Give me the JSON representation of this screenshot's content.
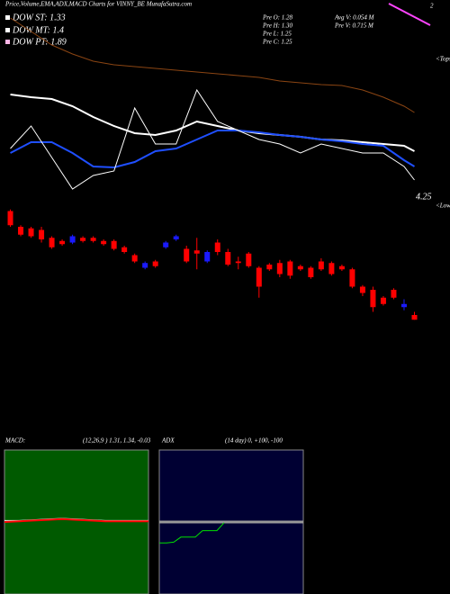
{
  "header": {
    "title": "Price,Volume,EMA,ADX,MACD Charts for VINNY_BE MunafaSutra.com",
    "legend": [
      "DOW ST: 1.33",
      "DOW MT: 1.4",
      "DOW PT: 1.89"
    ],
    "prev": [
      "Pre  O: 1.28",
      "Pre  H: 1.30",
      "Pre  L: 1.25",
      "Pre  C: 1.25",
      "Avg V: 0.054  M",
      "Pre  V: 0.715 M"
    ]
  },
  "chart_data": [
    {
      "type": "line",
      "xlim": [
        0,
        41
      ],
      "ylim": [
        4.25,
        8.55
      ],
      "yticks": [
        4.25
      ],
      "annotations": [
        "<Tops",
        "<Lows",
        "2"
      ],
      "x": [
        1,
        3,
        5,
        7,
        9,
        11,
        13,
        15,
        17,
        19,
        21,
        23,
        25,
        27,
        29,
        31,
        33,
        35,
        37,
        39,
        40
      ],
      "series": [
        {
          "color": "#8b4513",
          "values": [
            8.35,
            8.05,
            7.75,
            7.55,
            7.39,
            7.31,
            7.27,
            7.23,
            7.19,
            7.15,
            7.11,
            7.07,
            7.03,
            6.95,
            6.91,
            6.87,
            6.85,
            6.75,
            6.59,
            6.39,
            6.25
          ]
        },
        {
          "color": "#ffffff",
          "values": [
            6.65,
            6.59,
            6.55,
            6.39,
            6.15,
            5.95,
            5.79,
            5.75,
            5.85,
            6.05,
            5.95,
            5.85,
            5.79,
            5.75,
            5.71,
            5.65,
            5.63,
            5.59,
            5.55,
            5.51,
            5.39
          ]
        },
        {
          "color": "#1f4fff",
          "values": [
            5.35,
            5.59,
            5.59,
            5.35,
            5.05,
            5.03,
            5.15,
            5.39,
            5.45,
            5.65,
            5.85,
            5.85,
            5.81,
            5.75,
            5.71,
            5.65,
            5.61,
            5.55,
            5.51,
            5.19,
            5.05
          ]
        },
        {
          "color": "#ffffff",
          "values": [
            5.45,
            5.95,
            5.25,
            4.55,
            4.85,
            4.95,
            6.35,
            5.55,
            5.55,
            6.75,
            6.05,
            5.85,
            5.65,
            5.55,
            5.35,
            5.55,
            5.45,
            5.35,
            5.35,
            5.05,
            4.75
          ]
        }
      ]
    },
    {
      "type": "candlestick",
      "xlim": [
        0,
        41
      ],
      "ylim": [
        1.2,
        2.0
      ],
      "up_color": "#1a1aff",
      "down_color": "#ff0000",
      "x": [
        1,
        2,
        3,
        4,
        5,
        6,
        7,
        8,
        9,
        10,
        11,
        12,
        13,
        14,
        15,
        16,
        17,
        18,
        19,
        20,
        21,
        22,
        23,
        24,
        25,
        26,
        27,
        28,
        29,
        30,
        31,
        32,
        33,
        34,
        35,
        36,
        37,
        38,
        39,
        40
      ],
      "open": [
        1.94,
        1.84,
        1.83,
        1.82,
        1.77,
        1.75,
        1.74,
        1.77,
        1.77,
        1.75,
        1.75,
        1.71,
        1.66,
        1.58,
        1.62,
        1.71,
        1.76,
        1.7,
        1.69,
        1.62,
        1.74,
        1.68,
        1.62,
        1.67,
        1.58,
        1.6,
        1.61,
        1.62,
        1.59,
        1.58,
        1.62,
        1.61,
        1.59,
        1.57,
        1.46,
        1.44,
        1.39,
        1.44,
        1.33,
        1.28
      ],
      "high": [
        1.95,
        1.85,
        1.84,
        1.84,
        1.78,
        1.76,
        1.79,
        1.78,
        1.78,
        1.76,
        1.76,
        1.72,
        1.67,
        1.62,
        1.63,
        1.75,
        1.79,
        1.72,
        1.77,
        1.69,
        1.76,
        1.7,
        1.65,
        1.68,
        1.59,
        1.61,
        1.63,
        1.63,
        1.6,
        1.59,
        1.64,
        1.62,
        1.6,
        1.58,
        1.47,
        1.46,
        1.4,
        1.45,
        1.38,
        1.3
      ],
      "low": [
        1.84,
        1.78,
        1.77,
        1.74,
        1.7,
        1.72,
        1.73,
        1.74,
        1.74,
        1.72,
        1.69,
        1.67,
        1.61,
        1.57,
        1.58,
        1.7,
        1.75,
        1.61,
        1.57,
        1.61,
        1.66,
        1.59,
        1.57,
        1.58,
        1.39,
        1.56,
        1.52,
        1.51,
        1.56,
        1.51,
        1.56,
        1.53,
        1.56,
        1.45,
        1.4,
        1.3,
        1.34,
        1.38,
        1.31,
        1.25
      ],
      "close": [
        1.85,
        1.79,
        1.78,
        1.76,
        1.71,
        1.73,
        1.78,
        1.75,
        1.75,
        1.73,
        1.7,
        1.68,
        1.62,
        1.61,
        1.59,
        1.74,
        1.78,
        1.62,
        1.67,
        1.68,
        1.68,
        1.6,
        1.61,
        1.59,
        1.46,
        1.57,
        1.54,
        1.53,
        1.57,
        1.52,
        1.57,
        1.54,
        1.57,
        1.46,
        1.42,
        1.33,
        1.35,
        1.39,
        1.35,
        1.25
      ]
    },
    {
      "type": "line",
      "title": "MACD:",
      "subtitle": "(12,26,9 ) 1.31, 1.34, -0.03",
      "xlim": [
        0,
        20
      ],
      "ylim": [
        -1,
        1
      ],
      "x": [
        0,
        2,
        4,
        6,
        8,
        10,
        12,
        14,
        16,
        18,
        20
      ],
      "series": [
        {
          "color": "#ffffff",
          "values": [
            0.02,
            0.02,
            0.03,
            0.04,
            0.05,
            0.04,
            0.03,
            0.02,
            0.02,
            0.02,
            0.02
          ]
        },
        {
          "color": "#ff0000",
          "values": [
            0,
            0.01,
            0.02,
            0.03,
            0.04,
            0.03,
            0.02,
            0.01,
            0.01,
            0.01,
            0.01
          ]
        }
      ]
    },
    {
      "type": "line",
      "title": "ADX",
      "subtitle": "(14  day) 0, +100, -100",
      "xlim": [
        0,
        20
      ],
      "ylim": [
        -100,
        100
      ],
      "x": [
        0,
        1,
        2,
        3,
        4,
        5,
        6,
        7,
        8,
        9
      ],
      "series": [
        {
          "color": "#00e000",
          "values": [
            -29,
            -29,
            -28,
            -21,
            -21,
            -21,
            -12,
            -12,
            -12,
            -1
          ]
        }
      ]
    }
  ]
}
